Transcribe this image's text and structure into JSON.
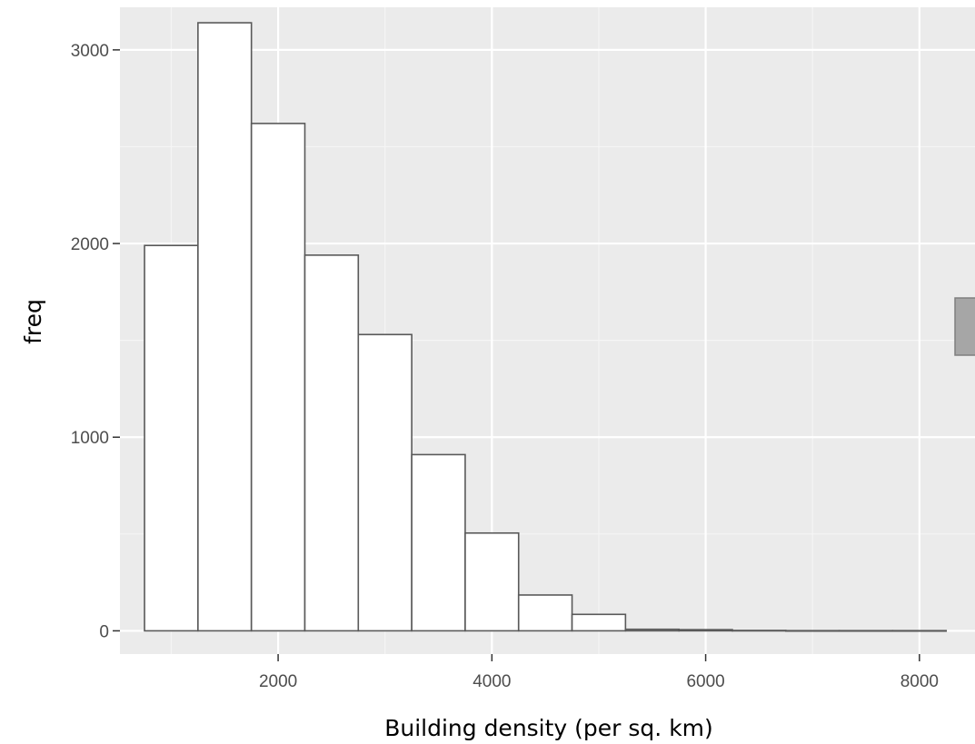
{
  "chart_data": {
    "type": "bar",
    "title": "",
    "xlabel": "Building density (per sq. km)",
    "ylabel": "freq",
    "xlim": [
      520,
      8520
    ],
    "ylim": [
      -120,
      3220
    ],
    "x_ticks": [
      2000,
      4000,
      6000,
      8000
    ],
    "x_tick_labels": [
      "2000",
      "4000",
      "6000",
      "8000"
    ],
    "y_ticks": [
      0,
      1000,
      2000,
      3000
    ],
    "y_tick_labels": [
      "0",
      "1000",
      "2000",
      "3000"
    ],
    "bin_width": 500,
    "bins": [
      {
        "x_start": 750,
        "x_end": 1250,
        "count": 1990
      },
      {
        "x_start": 1250,
        "x_end": 1750,
        "count": 3140
      },
      {
        "x_start": 1750,
        "x_end": 2250,
        "count": 2620
      },
      {
        "x_start": 2250,
        "x_end": 2750,
        "count": 1940
      },
      {
        "x_start": 2750,
        "x_end": 3250,
        "count": 1530
      },
      {
        "x_start": 3250,
        "x_end": 3750,
        "count": 910
      },
      {
        "x_start": 3750,
        "x_end": 4250,
        "count": 505
      },
      {
        "x_start": 4250,
        "x_end": 4750,
        "count": 185
      },
      {
        "x_start": 4750,
        "x_end": 5250,
        "count": 85
      },
      {
        "x_start": 5250,
        "x_end": 5750,
        "count": 8
      },
      {
        "x_start": 5750,
        "x_end": 6250,
        "count": 6
      },
      {
        "x_start": 6250,
        "x_end": 6750,
        "count": 2
      },
      {
        "x_start": 6750,
        "x_end": 7250,
        "count": 1
      },
      {
        "x_start": 7250,
        "x_end": 7750,
        "count": 1
      },
      {
        "x_start": 7750,
        "x_end": 8250,
        "count": 1
      }
    ],
    "grid": true,
    "legend": "none",
    "colors": {
      "panel_background": "#ebebeb",
      "grid_major": "#ffffff",
      "grid_minor": "#f5f5f5",
      "bar_fill": "#ffffff",
      "bar_outline": "#595959",
      "tick_label": "#4d4d4d",
      "tick_mark": "#333333",
      "axis_title": "#000000",
      "edge_swatch": "#a6a6a6"
    }
  }
}
